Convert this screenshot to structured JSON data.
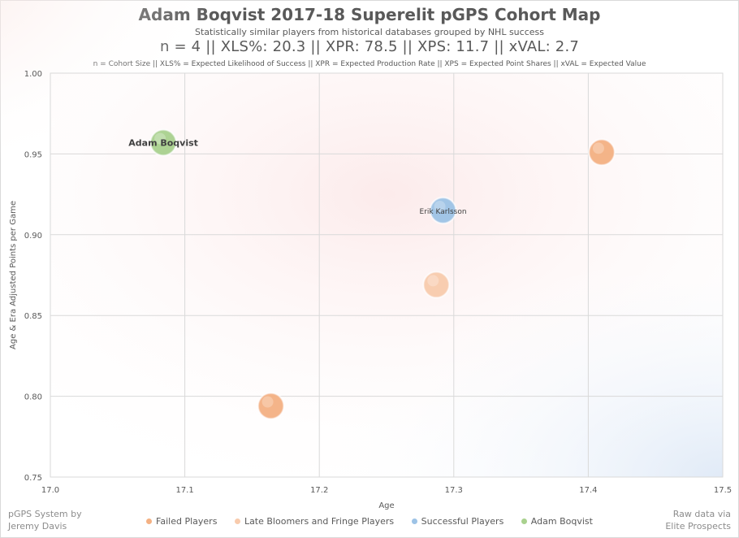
{
  "header": {
    "title": "Adam Boqvist 2017-18 Superelit pGPS Cohort Map",
    "subtitle": "Statistically similar players from historical databases grouped by NHL success",
    "stats": "n = 4   ||   XLS%: 20.3   ||   XPR: 78.5   ||   XPS: 11.7   ||   xVAL: 2.7",
    "definitions": "n = Cohort Size || XLS% = Expected Likelihood of Success || XPR = Expected Production Rate || XPS = Expected Point Shares || xVAL = Expected Value"
  },
  "footer": {
    "left_line1": "pGPS System by",
    "left_line2": "Jeremy Davis",
    "right_line1": "Raw data via",
    "right_line2": "Elite Prospects"
  },
  "colors": {
    "failed": "#f4b183",
    "late_bloomers": "#f8cbad",
    "successful": "#9dc3e6",
    "subject": "#a9d18e",
    "grid": "#d9d9d9"
  },
  "chart_data": {
    "type": "scatter",
    "title": "Adam Boqvist 2017-18 Superelit pGPS Cohort Map",
    "xlabel": "Age",
    "ylabel": "Age & Era Adjusted Points per Game",
    "xlim": [
      17.0,
      17.5
    ],
    "ylim": [
      0.75,
      1.0
    ],
    "xticks": [
      "17.0",
      "17.1",
      "17.2",
      "17.3",
      "17.4",
      "17.5"
    ],
    "yticks": [
      "0.75",
      "0.80",
      "0.85",
      "0.90",
      "0.95",
      "1.00"
    ],
    "grid": true,
    "legend_position": "bottom",
    "series": [
      {
        "name": "Failed Players",
        "color": "#f4b183",
        "points": [
          {
            "x": 17.41,
            "y": 0.951,
            "label": ""
          },
          {
            "x": 17.164,
            "y": 0.794,
            "label": ""
          }
        ]
      },
      {
        "name": "Late Bloomers and Fringe Players",
        "color": "#f8cbad",
        "points": [
          {
            "x": 17.287,
            "y": 0.869,
            "label": ""
          }
        ]
      },
      {
        "name": "Successful Players",
        "color": "#9dc3e6",
        "points": [
          {
            "x": 17.292,
            "y": 0.915,
            "label": "Erik Karlsson"
          }
        ]
      },
      {
        "name": "Adam Boqvist",
        "color": "#a9d18e",
        "points": [
          {
            "x": 17.084,
            "y": 0.957,
            "label": "Adam Boqvist"
          }
        ]
      }
    ]
  }
}
